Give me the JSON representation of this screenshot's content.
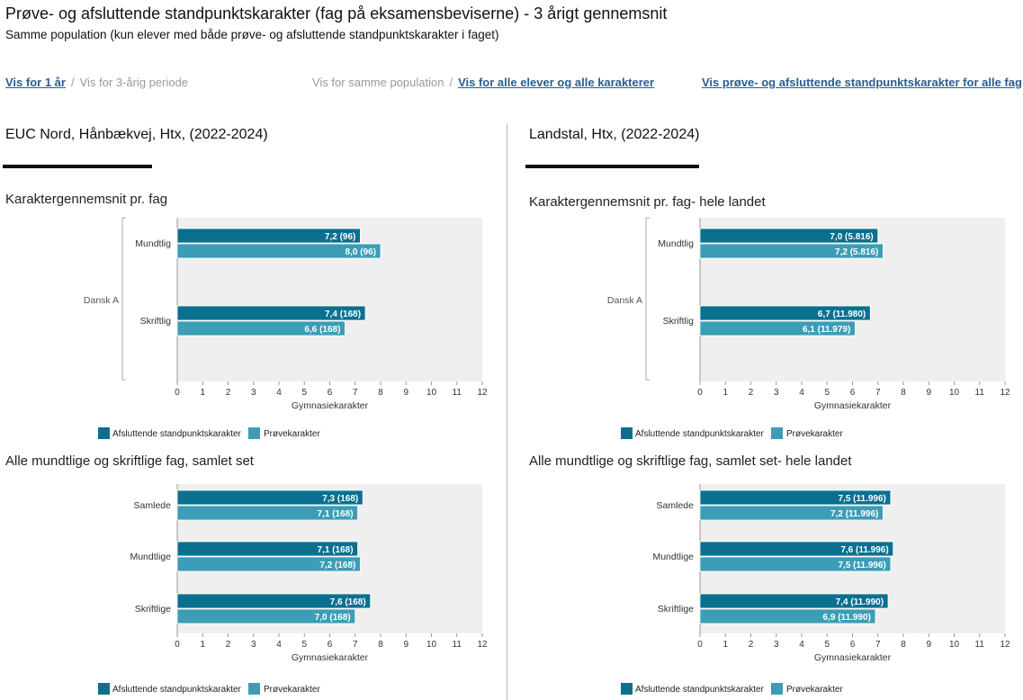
{
  "header": {
    "title": "Prøve- og afsluttende standpunktskarakter (fag på eksamensbeviserne) - 3 årigt gennemsnit",
    "subtitle": "Samme population (kun elever med både prøve- og afsluttende standpunktskarakter i faget)"
  },
  "nav": {
    "one_year": "Vis for 1 år",
    "sep": "/",
    "three_year": "Vis for 3-årig periode",
    "same_population": "Vis for samme population",
    "all_students": "Vis for alle elever og alle karakterer",
    "all_subjects": "Vis prøve- og afsluttende standpunktskarakter for alle fag"
  },
  "colors": {
    "afsluttende": "#0b7090",
    "prove": "#3b9db6",
    "plot_bg": "#efefef"
  },
  "left": {
    "title": "EUC Nord, Hånbækvej, Htx, (2022-2024)"
  },
  "right": {
    "title": "Landstal, Htx, (2022-2024)"
  },
  "legend": {
    "afsluttende": "Afsluttende standpunktskarakter",
    "prove": "Prøvekarakter"
  },
  "chart_data": [
    {
      "type": "bar",
      "orientation": "horizontal",
      "title": "Karaktergennemsnit pr. fag",
      "group_label": "Dansk A",
      "categories": [
        "Mundtlig",
        "Skriftlig"
      ],
      "xlabel": "Gymnasiekarakter",
      "xlim": [
        0,
        12
      ],
      "xticks": [
        "0",
        "1",
        "2",
        "3",
        "4",
        "5",
        "6",
        "7",
        "8",
        "9",
        "10",
        "11",
        "12"
      ],
      "series": [
        {
          "name": "Afsluttende standpunktskarakter",
          "values": [
            7.2,
            7.4
          ],
          "labels": [
            "7,2 (96)",
            "7,4 (168)"
          ]
        },
        {
          "name": "Prøvekarakter",
          "values": [
            8.0,
            6.6
          ],
          "labels": [
            "8,0 (96)",
            "6,6 (168)"
          ]
        }
      ]
    },
    {
      "type": "bar",
      "orientation": "horizontal",
      "title": "Alle mundtlige og skriftlige fag, samlet set",
      "categories": [
        "Samlede",
        "Mundtlige",
        "Skriftlige"
      ],
      "xlabel": "Gymnasiekarakter",
      "xlim": [
        0,
        12
      ],
      "xticks": [
        "0",
        "1",
        "2",
        "3",
        "4",
        "5",
        "6",
        "7",
        "8",
        "9",
        "10",
        "11",
        "12"
      ],
      "series": [
        {
          "name": "Afsluttende standpunktskarakter",
          "values": [
            7.3,
            7.1,
            7.6
          ],
          "labels": [
            "7,3 (168)",
            "7,1 (168)",
            "7,6 (168)"
          ]
        },
        {
          "name": "Prøvekarakter",
          "values": [
            7.1,
            7.2,
            7.0
          ],
          "labels": [
            "7,1 (168)",
            "7,2 (168)",
            "7,0 (168)"
          ]
        }
      ]
    },
    {
      "type": "bar",
      "orientation": "horizontal",
      "title": "Karaktergennemsnit pr. fag- hele landet",
      "group_label": "Dansk A",
      "categories": [
        "Mundtlig",
        "Skriftlig"
      ],
      "xlabel": "Gymnasiekarakter",
      "xlim": [
        0,
        12
      ],
      "xticks": [
        "0",
        "1",
        "2",
        "3",
        "4",
        "5",
        "6",
        "7",
        "8",
        "9",
        "10",
        "11",
        "12"
      ],
      "series": [
        {
          "name": "Afsluttende standpunktskarakter",
          "values": [
            7.0,
            6.7
          ],
          "labels": [
            "7,0 (5.816)",
            "6,7 (11.980)"
          ]
        },
        {
          "name": "Prøvekarakter",
          "values": [
            7.2,
            6.1
          ],
          "labels": [
            "7,2 (5.816)",
            "6,1 (11.979)"
          ]
        }
      ]
    },
    {
      "type": "bar",
      "orientation": "horizontal",
      "title": "Alle mundtlige og skriftlige fag, samlet set- hele landet",
      "categories": [
        "Samlede",
        "Mundtlige",
        "Skriftlige"
      ],
      "xlabel": "Gymnasiekarakter",
      "xlim": [
        0,
        12
      ],
      "xticks": [
        "0",
        "1",
        "2",
        "3",
        "4",
        "5",
        "6",
        "7",
        "8",
        "9",
        "10",
        "11",
        "12"
      ],
      "series": [
        {
          "name": "Afsluttende standpunktskarakter",
          "values": [
            7.5,
            7.6,
            7.4
          ],
          "labels": [
            "7,5 (11.996)",
            "7,6 (11.996)",
            "7,4 (11.990)"
          ]
        },
        {
          "name": "Prøvekarakter",
          "values": [
            7.2,
            7.5,
            6.9
          ],
          "labels": [
            "7,2 (11.996)",
            "7,5 (11.996)",
            "6,9 (11.990)"
          ]
        }
      ]
    }
  ]
}
